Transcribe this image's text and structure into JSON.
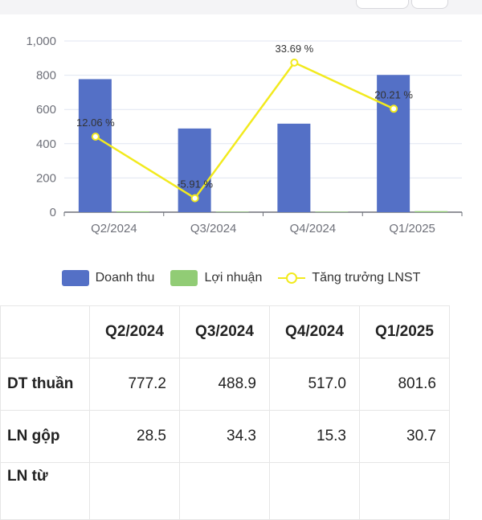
{
  "colors": {
    "revenue": "#5470c6",
    "profit": "#91cc75",
    "growth": "#f2ea1e",
    "axis": "#6e7079",
    "grid": "#e0e6f1"
  },
  "chart_data": {
    "type": "bar",
    "categories": [
      "Q2/2024",
      "Q3/2024",
      "Q4/2024",
      "Q1/2025"
    ],
    "series": [
      {
        "name": "Doanh thu",
        "type": "bar",
        "values": [
          777.2,
          488.9,
          517.0,
          801.6
        ]
      },
      {
        "name": "Lợi nhuận",
        "type": "bar",
        "values": [
          5,
          3,
          3,
          6
        ]
      },
      {
        "name": "Tăng trưởng LNST",
        "type": "line",
        "values": [
          12.06,
          -5.91,
          33.69,
          20.21
        ],
        "labels": [
          "12.06 %",
          "-5.91 %",
          "33.69 %",
          "20.21 %"
        ]
      }
    ],
    "y_ticks": [
      "0",
      "200",
      "400",
      "600",
      "800",
      "1,000"
    ],
    "ylim": [
      0,
      1000
    ],
    "growth_range": [
      -10,
      40
    ],
    "grid": true,
    "legend_position": "bottom"
  },
  "legend": {
    "revenue": "Doanh thu",
    "profit": "Lợi nhuận",
    "growth": "Tăng trưởng LNST"
  },
  "table": {
    "headers": [
      "",
      "Q2/2024",
      "Q3/2024",
      "Q4/2024",
      "Q1/2025"
    ],
    "rows": [
      {
        "label": "DT thuần",
        "values": [
          "777.2",
          "488.9",
          "517.0",
          "801.6"
        ]
      },
      {
        "label": "LN gộp",
        "values": [
          "28.5",
          "34.3",
          "15.3",
          "30.7"
        ]
      },
      {
        "label": "LN từ",
        "values": [
          "",
          "",
          "",
          ""
        ]
      }
    ]
  }
}
